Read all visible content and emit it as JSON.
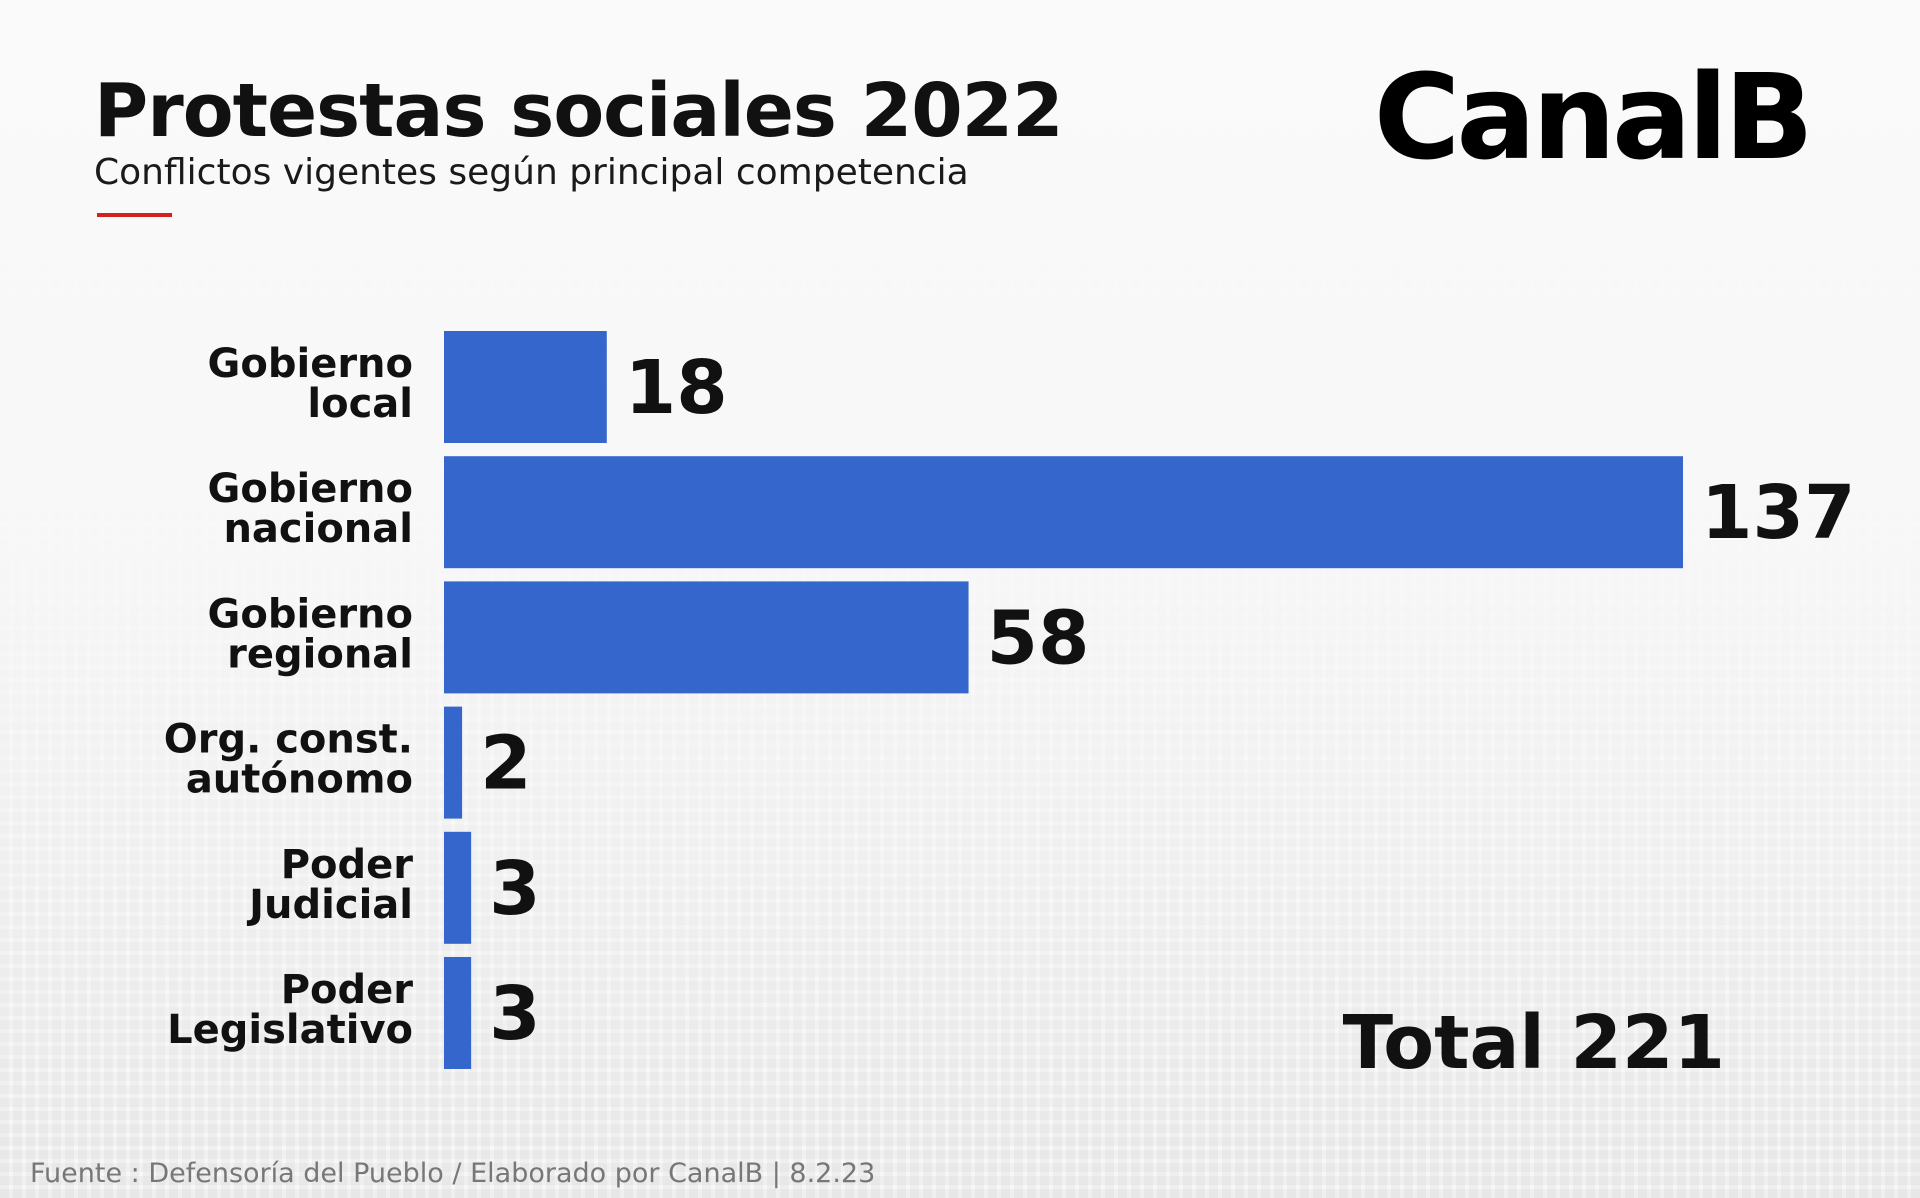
{
  "header": {
    "title": "Protestas sociales 2022",
    "subtitle": "Conflictos vigentes según principal competencia",
    "logo": "CanalB",
    "accent_color": "#d32020"
  },
  "chart_data": {
    "type": "bar",
    "orientation": "horizontal",
    "categories": [
      [
        "Gobierno",
        "local"
      ],
      [
        "Gobierno",
        "nacional"
      ],
      [
        "Gobierno",
        "regional"
      ],
      [
        "Org. const.",
        "autónomo"
      ],
      [
        "Poder",
        "Judicial"
      ],
      [
        "Poder",
        "Legislativo"
      ]
    ],
    "values": [
      18,
      137,
      58,
      2,
      3,
      3
    ],
    "value_labels": [
      "18",
      "137",
      "58",
      "2",
      "3",
      "3"
    ],
    "bar_color": "#3566cc",
    "xlim": [
      0,
      137
    ],
    "grid": false,
    "total_label": "Total 221"
  },
  "footer": {
    "source": "Fuente : Defensoría del Pueblo / Elaborado por CanalB  |  8.2.23"
  }
}
